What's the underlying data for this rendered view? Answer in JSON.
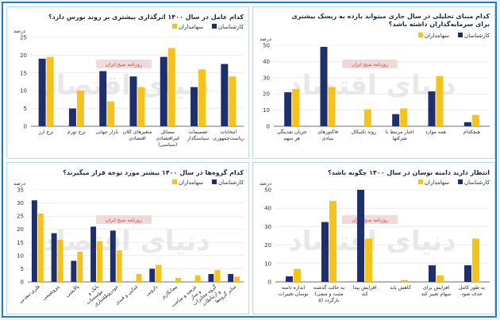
{
  "watermark": "دنیای اقتصاد",
  "badge": "روزنامه صبح ایران",
  "colors": {
    "analyst": "#1f2f6b",
    "shareholder": "#f5c31c"
  },
  "chart_data": [
    {
      "type": "bar",
      "title": "کدام عامل در سال ۱۴۰۰ اثرگذاری بیشتری بر روند بورس دارد؟",
      "unit": "درصد",
      "ylim": [
        0,
        25
      ],
      "yticks": [
        0,
        5,
        10,
        15,
        20,
        25
      ],
      "categories": [
        "نرخ ارز",
        "نرخ تورم",
        "بازار جهانی",
        "متغیرهای کلان اقتصادی",
        "مسائل غیراقتصادی (سیاسی)",
        "تصمیمات سیاستگذار",
        "انتخابات ریاست‌جمهوری"
      ],
      "series": [
        {
          "name": "کارشناسان",
          "values": [
            19,
            5,
            15.5,
            14,
            19.5,
            11,
            17.5
          ]
        },
        {
          "name": "سهامداران",
          "values": [
            19.5,
            10,
            7,
            11,
            22,
            16,
            14
          ]
        }
      ]
    },
    {
      "type": "bar",
      "title": "کدام مبنای تحلیلی در سال جاری میتواند بازده به ریسک بیشتری برای سرمایه‌گذاران داشته باشد؟",
      "unit": "درصد",
      "ylim": [
        0,
        50
      ],
      "yticks": [
        0,
        10,
        20,
        30,
        40,
        50
      ],
      "categories": [
        "جریان نقدینگی هر سهم",
        "فاکتورهای بنیادی",
        "روند تکنیکال",
        "اخبار مرتبط با شرکتها",
        "همه موارد",
        "هیچکدام"
      ],
      "series": [
        {
          "name": "کارشناسان",
          "values": [
            21,
            49,
            0,
            7.5,
            21.5,
            2.5
          ]
        },
        {
          "name": "سهامداران",
          "values": [
            23,
            24,
            10.5,
            11,
            31,
            7
          ]
        }
      ]
    },
    {
      "type": "bar",
      "title": "کدام گروه‌ها در سال ۱۴۰۰ بیشتر مورد توجه قرار میگیرند؟",
      "unit": "درصد",
      "ylim": [
        0,
        35
      ],
      "yticks": [
        0,
        5,
        10,
        15,
        20,
        25,
        30,
        35
      ],
      "categories": [
        "فلزی-معدنی",
        "پتروشیمی",
        "پالایشی",
        "بانک و مؤسسات اعتباری",
        "خودرویی",
        "غذایی و قندی",
        "دارویی",
        "پیمانکاری",
        "عرضه و ساخت و ساز",
        "گروه مخابرات و ارتباطات",
        "سایر گروه‌ها"
      ],
      "series": [
        {
          "name": "کارشناسان",
          "values": [
            31,
            18.5,
            8,
            21,
            19.5,
            0,
            5,
            0,
            0,
            3,
            3
          ]
        },
        {
          "name": "سهامداران",
          "values": [
            26,
            16,
            11.5,
            15.5,
            12,
            3,
            6.5,
            1.5,
            2.5,
            4.5,
            2
          ]
        }
      ]
    },
    {
      "type": "bar",
      "title": "انتظار دارید دامنه نوسان در سال ۱۴۰۰ چگونه باشد؟",
      "unit": "درصد",
      "ylim": [
        0,
        50
      ],
      "yticks": [
        0,
        10,
        20,
        30,
        40,
        50
      ],
      "categories": [
        "اندازه دامنه نوسان تغییرات",
        "به حالت گذشته (مثبت و منفی ۵) بازگردد",
        "افزایش پیدا کند",
        "کاهش یابد",
        "افزایش برای سهام تغییر کند",
        "به طور کامل حذف شود"
      ],
      "series": [
        {
          "name": "کارشناسان",
          "values": [
            3,
            32.5,
            50,
            0,
            9,
            9
          ]
        },
        {
          "name": "سهامداران",
          "values": [
            7,
            44,
            23.5,
            1,
            3.5,
            23.5
          ]
        }
      ]
    }
  ]
}
